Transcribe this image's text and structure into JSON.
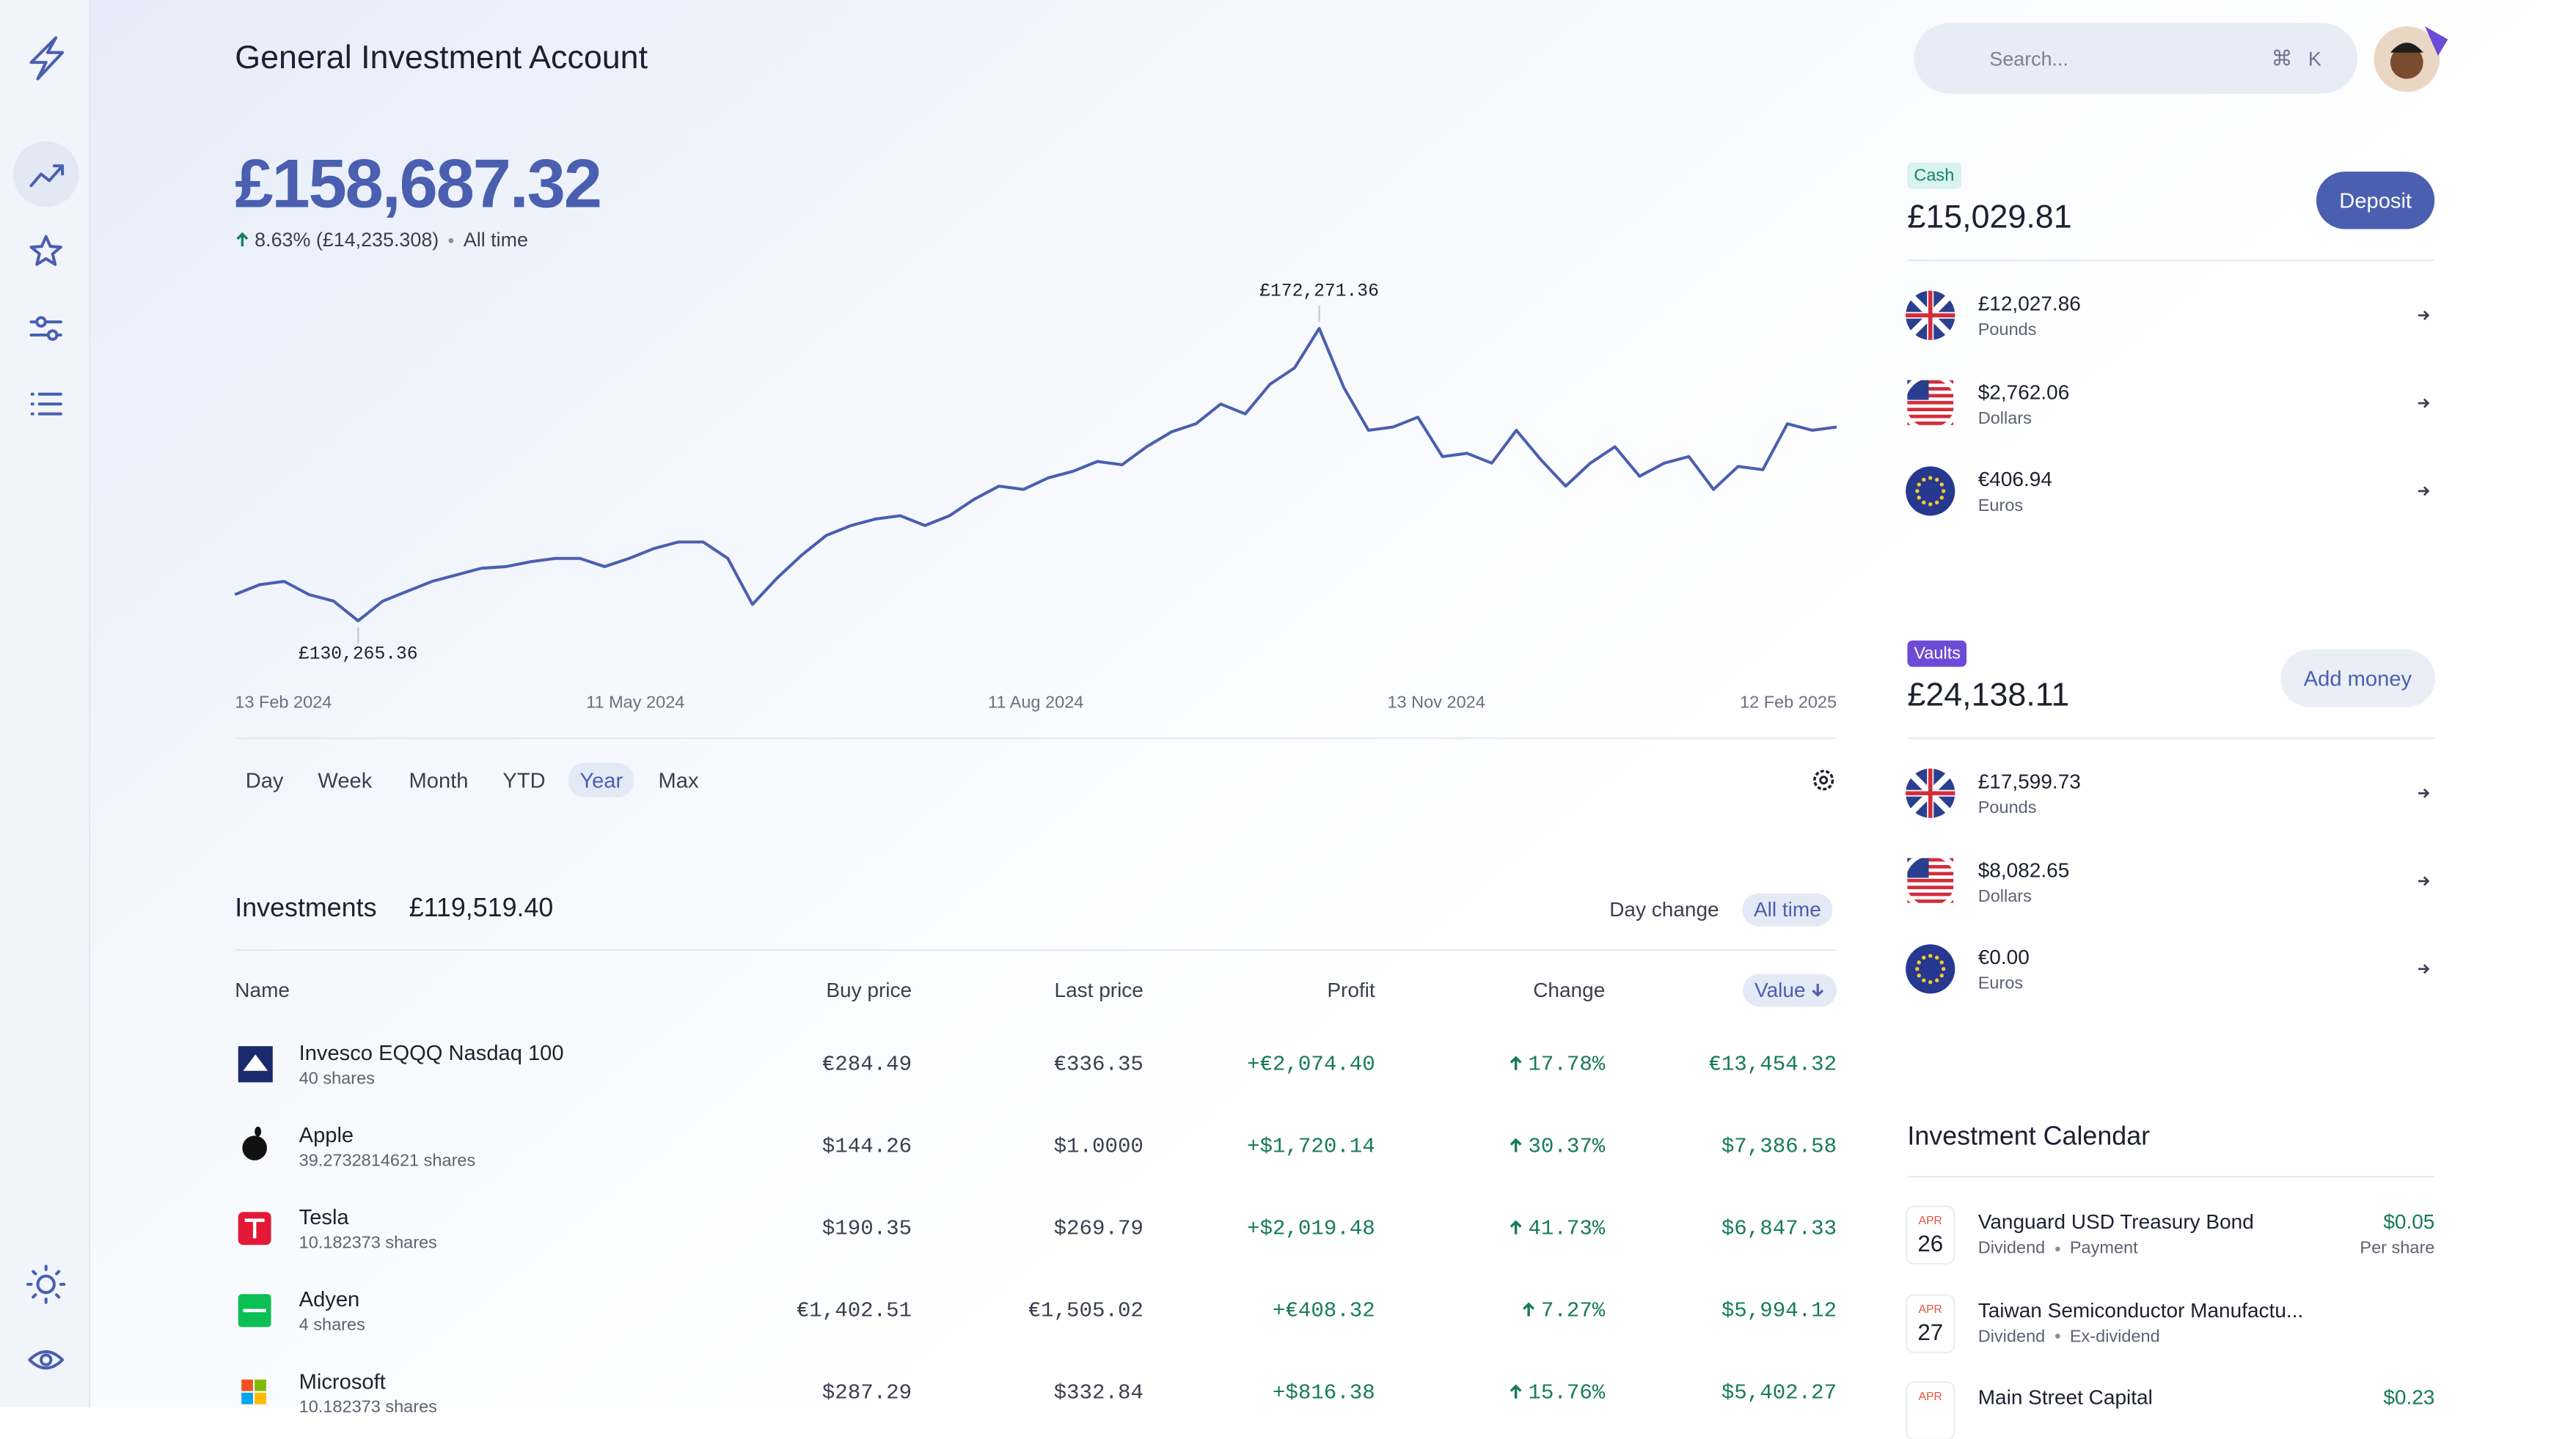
{
  "header": {
    "title": "General Investment Account",
    "search_placeholder": "Search...",
    "shortcut": [
      "⌘",
      "K"
    ]
  },
  "balance": {
    "amount": "£158,687.32",
    "change": "8.63% (£14,235.308)",
    "period": "All time"
  },
  "chart_data": {
    "type": "line",
    "color": "#4a5fb0",
    "values": [
      134041,
      135457,
      135929,
      134041,
      133097,
      130265.36,
      133097,
      134513,
      135929,
      136873,
      137817,
      138053,
      138761,
      139233,
      139233,
      138053,
      139233,
      140649,
      141593,
      141593,
      139233,
      132625,
      136401,
      139705,
      142537,
      143953,
      144897,
      145369,
      143953,
      145369,
      147729,
      149617,
      149145,
      150797,
      151741,
      153157,
      152685,
      155281,
      157405,
      158585,
      161417,
      160001,
      164249,
      166609,
      172271.36,
      163777,
      157641,
      158113,
      159529,
      153865,
      154337,
      152921,
      157641,
      153393,
      149617,
      152921,
      155281,
      151033,
      152921,
      153865,
      149145,
      152449,
      151977,
      158585,
      157641,
      158113
    ],
    "max_label": "£172,271.36",
    "min_label": "£130,265.36",
    "x_labels": [
      "13 Feb 2024",
      "11 May 2024",
      "11 Aug 2024",
      "13 Nov 2024",
      "12 Feb 2025"
    ],
    "ranges": [
      "Day",
      "Week",
      "Month",
      "YTD",
      "Year",
      "Max"
    ],
    "active_range": "Year"
  },
  "investments": {
    "title": "Investments",
    "total": "£119,519.40",
    "toggles": [
      "Day change",
      "All time"
    ],
    "active_toggle": "All time",
    "columns": [
      "Name",
      "Buy price",
      "Last price",
      "Profit",
      "Change",
      "Value"
    ],
    "rows": [
      {
        "name": "Invesco EQQQ Nasdaq 100",
        "shares": "40 shares",
        "buy": "€284.49",
        "last": "€336.35",
        "profit": "+€2,074.40",
        "change": "17.78%",
        "value": "€13,454.32"
      },
      {
        "name": "Apple",
        "shares": "39.2732814621 shares",
        "buy": "$144.26",
        "last": "$1.0000",
        "profit": "+$1,720.14",
        "change": "30.37%",
        "value": "$7,386.58"
      },
      {
        "name": "Tesla",
        "shares": "10.182373 shares",
        "buy": "$190.35",
        "last": "$269.79",
        "profit": "+$2,019.48",
        "change": "41.73%",
        "value": "$6,847.33"
      },
      {
        "name": "Adyen",
        "shares": "4 shares",
        "buy": "€1,402.51",
        "last": "€1,505.02",
        "profit": "+€408.32",
        "change": "7.27%",
        "value": "$5,994.12"
      },
      {
        "name": "Microsoft",
        "shares": "10.182373 shares",
        "buy": "$287.29",
        "last": "$332.84",
        "profit": "+$816.38",
        "change": "15.76%",
        "value": "$5,402.27"
      }
    ]
  },
  "cash": {
    "badge": "Cash",
    "amount": "£15,029.81",
    "button": "Deposit",
    "items": [
      {
        "amount": "£12,027.86",
        "currency": "Pounds"
      },
      {
        "amount": "$2,762.06",
        "currency": "Dollars"
      },
      {
        "amount": "€406.94",
        "currency": "Euros"
      }
    ]
  },
  "vaults": {
    "badge": "Vaults",
    "amount": "£24,138.11",
    "button": "Add money",
    "items": [
      {
        "amount": "£17,599.73",
        "currency": "Pounds"
      },
      {
        "amount": "$8,082.65",
        "currency": "Dollars"
      },
      {
        "amount": "€0.00",
        "currency": "Euros"
      }
    ]
  },
  "calendar": {
    "title": "Investment Calendar",
    "events": [
      {
        "month": "APR",
        "day": "26",
        "name": "Vanguard USD Treasury Bond",
        "tags": [
          "Dividend",
          "Payment"
        ],
        "amount": "$0.05",
        "note": "Per share"
      },
      {
        "month": "APR",
        "day": "27",
        "name": "Taiwan Semiconductor Manufactu...",
        "tags": [
          "Dividend",
          "Ex-dividend"
        ]
      },
      {
        "month": "APR",
        "name": "Main Street Capital",
        "amount": "$0.23"
      }
    ]
  }
}
